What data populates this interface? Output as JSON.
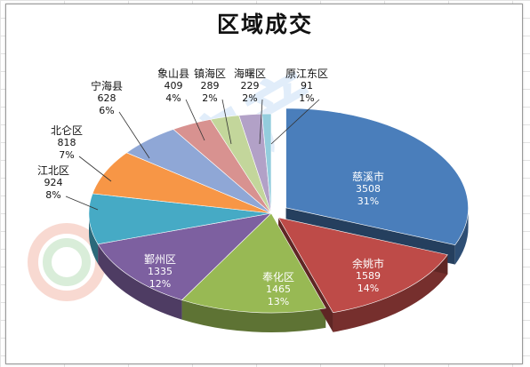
{
  "chart_data": {
    "type": "pie",
    "title": "区域成交",
    "slices": [
      {
        "name": "慈溪市",
        "value": 3508,
        "percent": "31%",
        "color": "#4a7ebb"
      },
      {
        "name": "余姚市",
        "value": 1589,
        "percent": "14%",
        "color": "#be4b48"
      },
      {
        "name": "奉化区",
        "value": 1465,
        "percent": "13%",
        "color": "#98b954"
      },
      {
        "name": "鄞州区",
        "value": 1335,
        "percent": "12%",
        "color": "#7d60a0"
      },
      {
        "name": "江北区",
        "value": 924,
        "percent": "8%",
        "color": "#46aac5"
      },
      {
        "name": "北仑区",
        "value": 818,
        "percent": "7%",
        "color": "#f79646"
      },
      {
        "name": "宁海县",
        "value": 628,
        "percent": "6%",
        "color": "#8fa7d6"
      },
      {
        "name": "象山县",
        "value": 409,
        "percent": "4%",
        "color": "#d89290"
      },
      {
        "name": "镇海区",
        "value": 289,
        "percent": "2%",
        "color": "#c3d69b"
      },
      {
        "name": "海曙区",
        "value": 229,
        "percent": "2%",
        "color": "#b2a1c7"
      },
      {
        "name": "原江东区",
        "value": 91,
        "percent": "1%",
        "color": "#93cddd"
      }
    ],
    "legend": "none",
    "data_labels": "name, value, percent"
  }
}
